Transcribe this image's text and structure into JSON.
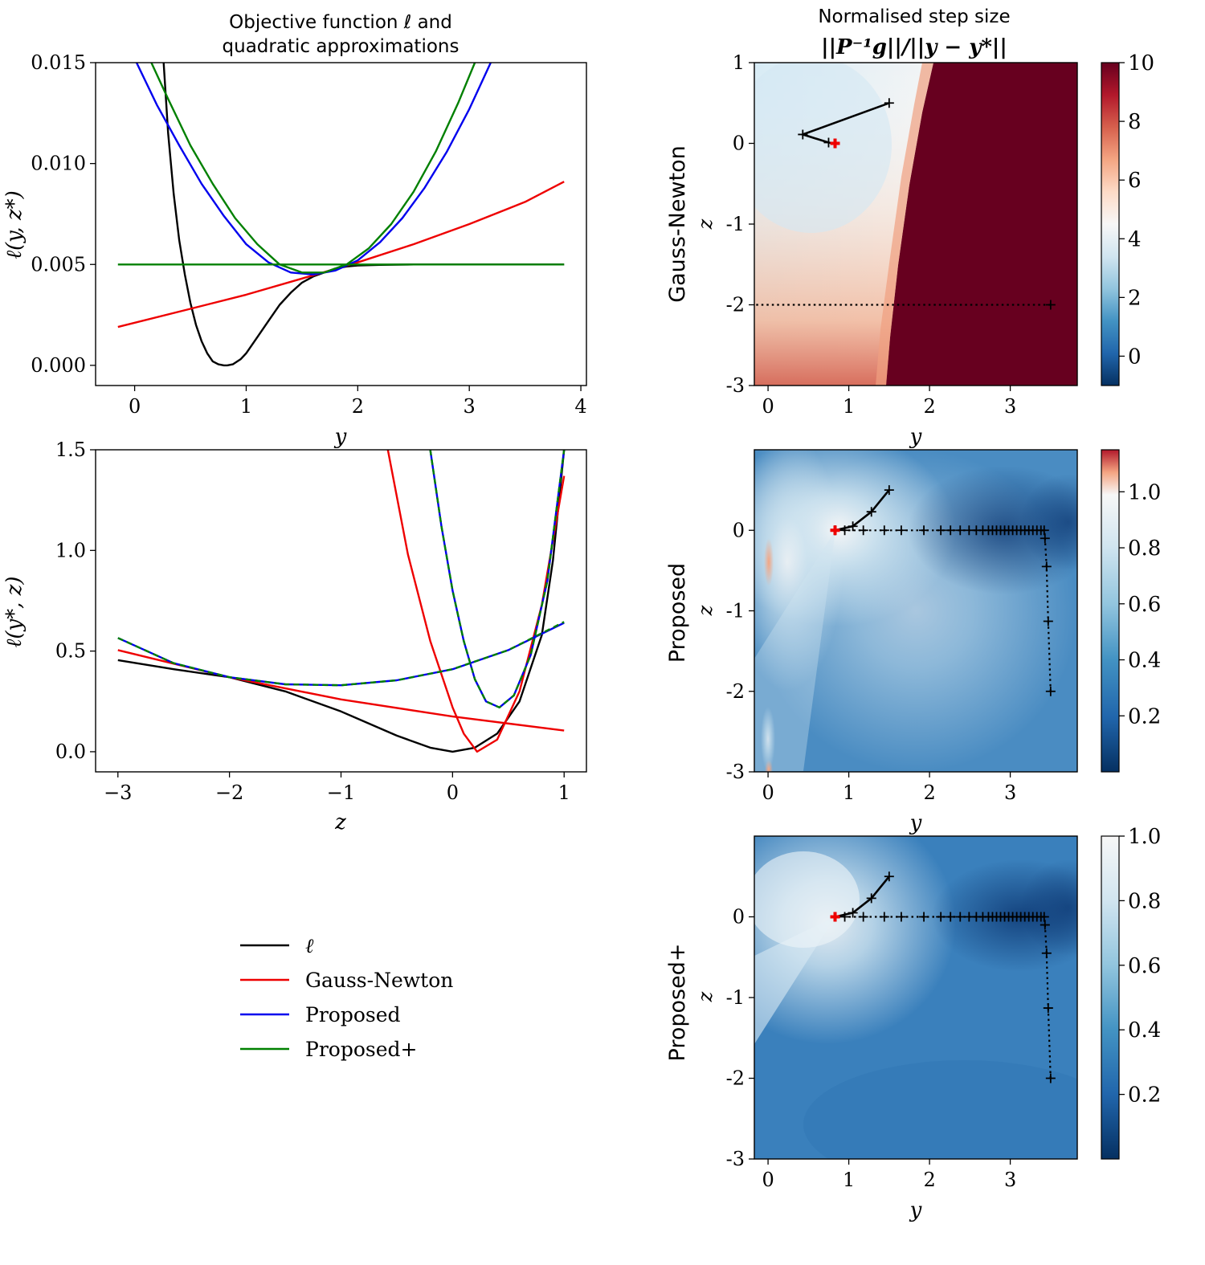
{
  "chart_data": [
    {
      "id": "left-top",
      "type": "line",
      "title_lines": [
        "Objective function ℓ and",
        "quadratic approximations"
      ],
      "xlabel": "y",
      "ylabel": "ℓ(y, z*)",
      "xlim": [
        -0.35,
        4.05
      ],
      "ylim": [
        -0.001,
        0.015
      ],
      "xticks": [
        0,
        1,
        2,
        3,
        4
      ],
      "xtick_labels": [
        "0",
        "1",
        "2",
        "3",
        "4"
      ],
      "yticks": [
        0.0,
        0.005,
        0.01,
        0.015
      ],
      "ytick_labels": [
        "0.000",
        "0.005",
        "0.010",
        "0.015"
      ],
      "series": [
        {
          "name": "ℓ",
          "color": "#000000",
          "x": [
            0.26,
            0.3,
            0.35,
            0.4,
            0.45,
            0.5,
            0.55,
            0.6,
            0.65,
            0.7,
            0.75,
            0.8,
            0.83,
            0.88,
            0.95,
            1.0,
            1.1,
            1.2,
            1.3,
            1.4,
            1.5,
            1.6,
            1.7,
            1.8,
            1.9,
            2.0,
            2.2,
            2.5,
            3.0,
            3.5,
            3.85
          ],
          "y": [
            0.015,
            0.0115,
            0.0085,
            0.0062,
            0.0045,
            0.0031,
            0.002,
            0.0012,
            0.0006,
            0.0002,
            5e-05,
            0.0,
            0.0,
            5e-05,
            0.0003,
            0.0006,
            0.0014,
            0.0022,
            0.003,
            0.0036,
            0.0041,
            0.0044,
            0.0046,
            0.0048,
            0.0049,
            0.00495,
            0.00498,
            0.005,
            0.005,
            0.005,
            0.005
          ]
        },
        {
          "name": "Gauss-Newton",
          "color": "#ee0000",
          "x": [
            -0.15,
            0.5,
            1.0,
            1.5,
            2.0,
            2.5,
            3.0,
            3.5,
            3.85
          ],
          "y": [
            0.0019,
            0.0028,
            0.0035,
            0.0043,
            0.0051,
            0.006,
            0.007,
            0.0081,
            0.0091
          ]
        },
        {
          "name": "Proposed",
          "color": "#0000ee",
          "x": [
            0.0,
            0.2,
            0.4,
            0.6,
            0.8,
            1.0,
            1.2,
            1.4,
            1.6,
            1.8,
            2.0,
            2.2,
            2.4,
            2.6,
            2.8,
            3.0,
            3.2
          ],
          "y": [
            0.0152,
            0.0129,
            0.0109,
            0.009,
            0.0074,
            0.006,
            0.0051,
            0.0046,
            0.0045,
            0.0047,
            0.0052,
            0.0061,
            0.0073,
            0.0088,
            0.0106,
            0.0127,
            0.0151
          ]
        },
        {
          "name": "Proposed+",
          "color": "#008000",
          "x": [
            0.15,
            0.3,
            0.5,
            0.7,
            0.9,
            1.1,
            1.3,
            1.5,
            1.7,
            1.9,
            2.1,
            2.3,
            2.5,
            2.7,
            2.9,
            3.05
          ],
          "y": [
            0.015,
            0.0132,
            0.0109,
            0.009,
            0.0073,
            0.006,
            0.005,
            0.0046,
            0.0046,
            0.005,
            0.0058,
            0.007,
            0.0086,
            0.0106,
            0.013,
            0.015
          ]
        },
        {
          "name": "Proposed+ (constant)",
          "color": "#008000",
          "x": [
            -0.15,
            3.85
          ],
          "y": [
            0.005,
            0.005
          ]
        }
      ]
    },
    {
      "id": "left-bottom",
      "type": "line",
      "xlabel": "z",
      "ylabel": "ℓ(y*, z)",
      "xlim": [
        -3.2,
        1.2
      ],
      "ylim": [
        -0.1,
        1.5
      ],
      "xticks": [
        -3,
        -2,
        -1,
        0,
        1
      ],
      "xtick_labels": [
        "−3",
        "−2",
        "−1",
        "0",
        "1"
      ],
      "yticks": [
        0.0,
        0.5,
        1.0,
        1.5
      ],
      "ytick_labels": [
        "0.0",
        "0.5",
        "1.0",
        "1.5"
      ],
      "series": [
        {
          "name": "ℓ",
          "color": "#000000",
          "x": [
            -3.0,
            -2.5,
            -2.0,
            -1.5,
            -1.0,
            -0.5,
            -0.2,
            0.0,
            0.2,
            0.4,
            0.6,
            0.8,
            0.9,
            1.0
          ],
          "y": [
            0.455,
            0.41,
            0.37,
            0.3,
            0.2,
            0.08,
            0.02,
            0.0,
            0.02,
            0.09,
            0.25,
            0.58,
            0.95,
            1.5
          ]
        },
        {
          "name": "Gauss-Newton (tangent)",
          "color": "#ee0000",
          "x": [
            -3.0,
            -2.0,
            -1.0,
            0.0,
            1.0
          ],
          "y": [
            0.505,
            0.37,
            0.26,
            0.175,
            0.105
          ]
        },
        {
          "name": "Gauss-Newton (quadratic)",
          "color": "#ee0000",
          "x": [
            -0.58,
            -0.4,
            -0.2,
            0.0,
            0.1,
            0.22,
            0.4,
            0.6,
            0.8,
            1.0
          ],
          "y": [
            1.5,
            0.98,
            0.55,
            0.22,
            0.09,
            0.0,
            0.06,
            0.3,
            0.73,
            1.37
          ]
        },
        {
          "name": "Proposed (wide)",
          "color": "#0000ee",
          "x": [
            -3.0,
            -2.5,
            -2.0,
            -1.5,
            -1.0,
            -0.5,
            0.0,
            0.5,
            1.0
          ],
          "y": [
            0.565,
            0.44,
            0.37,
            0.335,
            0.33,
            0.355,
            0.41,
            0.505,
            0.64
          ]
        },
        {
          "name": "Proposed (narrow)",
          "color": "#0000ee",
          "x": [
            -0.2,
            -0.1,
            0.0,
            0.1,
            0.2,
            0.3,
            0.42,
            0.55,
            0.7,
            0.85,
            1.0
          ],
          "y": [
            1.5,
            1.12,
            0.8,
            0.55,
            0.36,
            0.25,
            0.22,
            0.28,
            0.48,
            0.85,
            1.5
          ]
        },
        {
          "name": "Proposed+ (wide)",
          "color": "#008000",
          "dashed": true,
          "x": [
            -3.0,
            -2.5,
            -2.0,
            -1.5,
            -1.0,
            -0.5,
            0.0,
            0.5,
            1.0
          ],
          "y": [
            0.565,
            0.44,
            0.37,
            0.335,
            0.33,
            0.355,
            0.41,
            0.505,
            0.645
          ]
        },
        {
          "name": "Proposed+ (narrow)",
          "color": "#008000",
          "dashed": true,
          "x": [
            -0.2,
            -0.1,
            0.0,
            0.1,
            0.2,
            0.3,
            0.42,
            0.55,
            0.7,
            0.85,
            1.0
          ],
          "y": [
            1.5,
            1.12,
            0.8,
            0.55,
            0.36,
            0.25,
            0.22,
            0.28,
            0.48,
            0.85,
            1.5
          ]
        }
      ]
    },
    {
      "id": "right-top",
      "type": "heatmap",
      "method": "Gauss-Newton",
      "title_lines": [
        "Normalised step size",
        "||P⁻¹g||/||y − y*||"
      ],
      "xlabel": "y",
      "ylabel": "z",
      "xlim": [
        -0.17,
        3.83
      ],
      "ylim": [
        -3,
        1
      ],
      "xticks": [
        0,
        1,
        2,
        3
      ],
      "xtick_labels": [
        "0",
        "1",
        "2",
        "3"
      ],
      "yticks": [
        1,
        0,
        -1,
        -2,
        -3
      ],
      "ytick_labels": [
        "1",
        "0",
        "-1",
        "-2",
        "-3"
      ],
      "colorbar": {
        "range": [
          -1,
          10
        ],
        "ticks": [
          0,
          2,
          4,
          6,
          8,
          10
        ],
        "tick_labels": [
          "0",
          "2",
          "4",
          "6",
          "8",
          "10"
        ]
      },
      "trajectory_solid": {
        "x": [
          1.5,
          0.43,
          0.75,
          0.83
        ],
        "y": [
          0.5,
          0.11,
          0.01,
          0.0
        ]
      },
      "trajectory_dotted": {
        "x": [
          3.5,
          -0.17
        ],
        "y": [
          -2,
          -2
        ]
      },
      "optimum": {
        "x": 0.83,
        "y": 0.0
      }
    },
    {
      "id": "right-middle",
      "type": "heatmap",
      "method": "Proposed",
      "xlabel": "y",
      "ylabel": "z",
      "xlim": [
        -0.17,
        3.83
      ],
      "ylim": [
        -3,
        1
      ],
      "xticks": [
        0,
        1,
        2,
        3
      ],
      "xtick_labels": [
        "0",
        "1",
        "2",
        "3"
      ],
      "yticks": [
        0,
        -1,
        -2,
        -3
      ],
      "ytick_labels": [
        "0",
        "-1",
        "-2",
        "-3"
      ],
      "colorbar": {
        "range": [
          0,
          1.15
        ],
        "ticks": [
          0.2,
          0.4,
          0.6,
          0.8,
          1.0
        ],
        "tick_labels": [
          "0.2",
          "0.4",
          "0.6",
          "0.8",
          "1.0"
        ]
      },
      "trajectory_solid": {
        "x": [
          1.5,
          1.28,
          1.05,
          0.83
        ],
        "y": [
          0.5,
          0.23,
          0.05,
          0.0
        ]
      },
      "trajectory_dotted": {
        "x": [
          3.5,
          3.47,
          3.45,
          3.43,
          3.42,
          3.38,
          3.33,
          3.28,
          3.23,
          3.18,
          3.13,
          3.08,
          3.03,
          2.98,
          2.93,
          2.88,
          2.83,
          2.78,
          2.73,
          2.66,
          2.58,
          2.49,
          2.38,
          2.26,
          2.14,
          1.93,
          1.65,
          1.44,
          1.18,
          0.95,
          0.83
        ],
        "y": [
          -2.0,
          -1.13,
          -0.45,
          -0.1,
          0.0,
          0.0,
          0.0,
          0.0,
          0.0,
          0.0,
          0.0,
          0.0,
          0.0,
          0.0,
          0.0,
          0.0,
          0.0,
          0.0,
          0.0,
          0.0,
          0.0,
          0.0,
          0.0,
          0.0,
          0.0,
          0.0,
          0.0,
          0.0,
          0.0,
          0.0,
          0.0
        ]
      },
      "optimum": {
        "x": 0.83,
        "y": 0.0
      }
    },
    {
      "id": "right-bottom",
      "type": "heatmap",
      "method": "Proposed+",
      "xlabel": "y",
      "ylabel": "z",
      "xlim": [
        -0.17,
        3.83
      ],
      "ylim": [
        -3,
        1
      ],
      "xticks": [
        0,
        1,
        2,
        3
      ],
      "xtick_labels": [
        "0",
        "1",
        "2",
        "3"
      ],
      "yticks": [
        0,
        -1,
        -2,
        -3
      ],
      "ytick_labels": [
        "0",
        "-1",
        "-2",
        "-3"
      ],
      "colorbar": {
        "range": [
          0,
          1.0
        ],
        "ticks": [
          0.2,
          0.4,
          0.6,
          0.8,
          1.0
        ],
        "tick_labels": [
          "0.2",
          "0.4",
          "0.6",
          "0.8",
          "1.0"
        ]
      },
      "trajectory_solid": {
        "x": [
          1.5,
          1.28,
          1.05,
          0.83
        ],
        "y": [
          0.5,
          0.23,
          0.05,
          0.0
        ]
      },
      "trajectory_dotted": {
        "x": [
          3.5,
          3.47,
          3.45,
          3.43,
          3.42,
          3.38,
          3.33,
          3.28,
          3.23,
          3.18,
          3.13,
          3.08,
          3.03,
          2.98,
          2.93,
          2.88,
          2.83,
          2.78,
          2.73,
          2.66,
          2.58,
          2.49,
          2.38,
          2.26,
          2.14,
          1.93,
          1.65,
          1.44,
          1.18,
          0.95,
          0.83
        ],
        "y": [
          -2.0,
          -1.13,
          -0.45,
          -0.1,
          0.0,
          0.0,
          0.0,
          0.0,
          0.0,
          0.0,
          0.0,
          0.0,
          0.0,
          0.0,
          0.0,
          0.0,
          0.0,
          0.0,
          0.0,
          0.0,
          0.0,
          0.0,
          0.0,
          0.0,
          0.0,
          0.0,
          0.0,
          0.0,
          0.0,
          0.0,
          0.0
        ]
      },
      "optimum": {
        "x": 0.83,
        "y": 0.0
      }
    }
  ],
  "legend": {
    "entries": [
      {
        "label": "ℓ",
        "color": "#000000"
      },
      {
        "label": "Gauss-Newton",
        "color": "#ee0000"
      },
      {
        "label": "Proposed",
        "color": "#0000ee"
      },
      {
        "label": "Proposed+",
        "color": "#008000"
      }
    ]
  }
}
